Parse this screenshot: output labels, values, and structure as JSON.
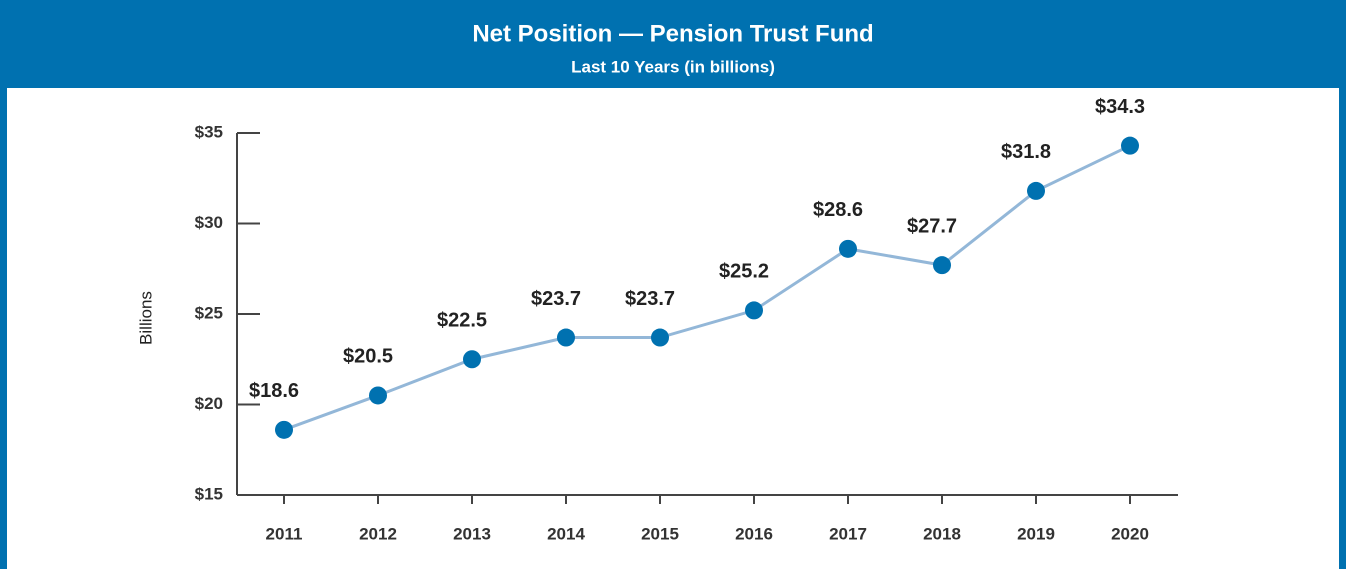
{
  "chart_data": {
    "type": "line",
    "title": "Net Position — Pension Trust Fund",
    "subtitle": "Last 10 Years (in billions)",
    "y_label": "Billions",
    "categories": [
      "2011",
      "2012",
      "2013",
      "2014",
      "2015",
      "2016",
      "2017",
      "2018",
      "2019",
      "2020"
    ],
    "series": [
      {
        "name": "Net Position",
        "color": "#0071b0",
        "line_color": "#93b7d8",
        "values": [
          18.6,
          20.5,
          22.5,
          23.7,
          23.7,
          25.2,
          28.6,
          27.7,
          31.8,
          34.3
        ],
        "value_labels": [
          "$18.6",
          "$20.5",
          "$22.5",
          "$23.7",
          "$23.7",
          "$25.2",
          "$28.6",
          "$27.7",
          "$31.8",
          "$34.3"
        ]
      }
    ],
    "ylim": [
      15,
      35
    ],
    "yticks": [
      {
        "value": 15,
        "label": "$15"
      },
      {
        "value": 20,
        "label": "$20"
      },
      {
        "value": 25,
        "label": "$25"
      },
      {
        "value": 30,
        "label": "$30"
      },
      {
        "value": 35,
        "label": "$35"
      }
    ],
    "header_color": "#0071b0"
  }
}
